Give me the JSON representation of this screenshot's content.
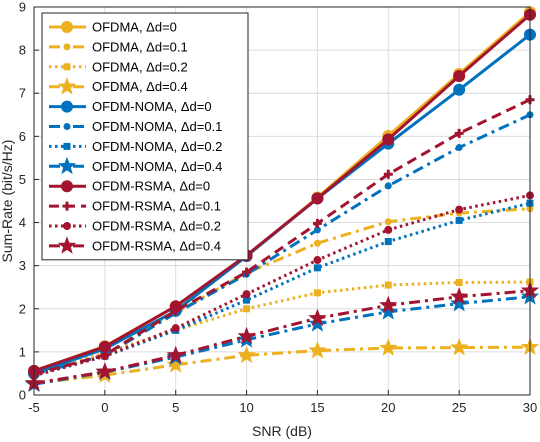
{
  "chart_data": {
    "type": "line",
    "xlabel": "SNR (dB)",
    "ylabel": "Sum-Rate (bit/s/Hz)",
    "xlim": [
      -5,
      30
    ],
    "ylim": [
      0,
      9
    ],
    "xticks": [
      -5,
      0,
      5,
      10,
      15,
      20,
      25,
      30
    ],
    "yticks": [
      0,
      1,
      2,
      3,
      4,
      5,
      6,
      7,
      8,
      9
    ],
    "grid": true,
    "legend_position": "top-left",
    "x": [
      -5,
      0,
      5,
      10,
      15,
      20,
      25,
      30
    ],
    "series": [
      {
        "name": "OFDMA, Δd=0",
        "color": "#EDB120",
        "dash": "solid",
        "marker": "circle",
        "values": [
          0.56,
          1.13,
          2.05,
          3.22,
          4.58,
          6.01,
          7.45,
          8.88
        ]
      },
      {
        "name": "OFDMA, Δd=0.1",
        "color": "#EDB120",
        "dash": "dashdot",
        "marker": "point",
        "values": [
          0.55,
          1.1,
          1.91,
          2.83,
          3.52,
          4.02,
          4.22,
          4.32
        ]
      },
      {
        "name": "OFDMA, Δd=0.2",
        "color": "#EDB120",
        "dash": "dotted",
        "marker": "square",
        "values": [
          0.46,
          0.98,
          1.5,
          2.0,
          2.37,
          2.55,
          2.61,
          2.62
        ]
      },
      {
        "name": "OFDMA, Δd=0.4",
        "color": "#EDB120",
        "dash": "dashdot",
        "marker": "star",
        "values": [
          0.27,
          0.46,
          0.7,
          0.92,
          1.03,
          1.09,
          1.1,
          1.11
        ]
      },
      {
        "name": "OFDM-NOMA, Δd=0",
        "color": "#0072BD",
        "dash": "solid",
        "marker": "circle",
        "values": [
          0.5,
          1.07,
          1.95,
          3.22,
          4.56,
          5.83,
          7.08,
          8.36
        ]
      },
      {
        "name": "OFDM-NOMA, Δd=0.1",
        "color": "#0072BD",
        "dash": "dashdot",
        "marker": "point",
        "values": [
          0.48,
          0.92,
          1.9,
          2.8,
          3.83,
          4.85,
          5.74,
          6.5
        ]
      },
      {
        "name": "OFDM-NOMA, Δd=0.2",
        "color": "#0072BD",
        "dash": "dotted",
        "marker": "square",
        "values": [
          0.45,
          0.9,
          1.5,
          2.2,
          2.95,
          3.56,
          4.05,
          4.45
        ]
      },
      {
        "name": "OFDM-NOMA, Δd=0.4",
        "color": "#0072BD",
        "dash": "dashdot",
        "marker": "star",
        "values": [
          0.25,
          0.53,
          0.88,
          1.28,
          1.65,
          1.93,
          2.12,
          2.28
        ]
      },
      {
        "name": "OFDM-RSMA, Δd=0",
        "color": "#A2142F",
        "dash": "solid",
        "marker": "circle",
        "values": [
          0.56,
          1.12,
          2.06,
          3.24,
          4.56,
          5.93,
          7.4,
          8.82
        ]
      },
      {
        "name": "OFDM-RSMA, Δd=0.1",
        "color": "#A2142F",
        "dash": "dashed",
        "marker": "plus",
        "values": [
          0.48,
          0.93,
          1.95,
          2.85,
          3.98,
          5.12,
          6.07,
          6.85
        ]
      },
      {
        "name": "OFDM-RSMA, Δd=0.2",
        "color": "#A2142F",
        "dash": "dotted",
        "marker": "circle-s",
        "values": [
          0.45,
          0.9,
          1.55,
          2.34,
          3.13,
          3.83,
          4.3,
          4.63
        ]
      },
      {
        "name": "OFDM-RSMA, Δd=0.4",
        "color": "#A2142F",
        "dash": "dashdot",
        "marker": "star",
        "values": [
          0.27,
          0.54,
          0.92,
          1.36,
          1.78,
          2.08,
          2.28,
          2.42
        ]
      }
    ]
  }
}
